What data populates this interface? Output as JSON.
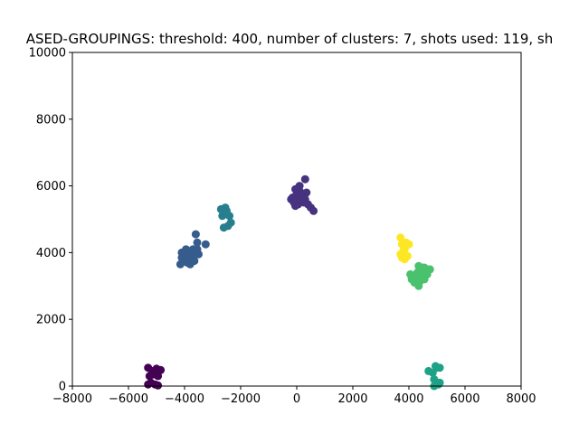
{
  "chart_data": {
    "type": "scatter",
    "title": "ASED-GROUPINGS: threshold: 400, number of clusters: 7, shots used: 119, sh",
    "xlabel": "",
    "ylabel": "",
    "xlim": [
      -8000,
      8000
    ],
    "ylim": [
      0,
      10000
    ],
    "xticks": [
      -8000,
      -6000,
      -4000,
      -2000,
      0,
      2000,
      4000,
      6000,
      8000
    ],
    "xtick_labels": [
      "−8000",
      "−6000",
      "−4000",
      "−2000",
      "0",
      "2000",
      "4000",
      "6000",
      "8000"
    ],
    "yticks": [
      0,
      2000,
      4000,
      6000,
      8000,
      10000
    ],
    "ytick_labels": [
      "0",
      "2000",
      "4000",
      "6000",
      "8000",
      "10000"
    ],
    "grid": false,
    "colormap": "viridis",
    "series": [
      {
        "color": "#440154",
        "points": [
          [
            -5300,
            550
          ],
          [
            -5150,
            450
          ],
          [
            -5000,
            520
          ],
          [
            -4850,
            480
          ],
          [
            -5250,
            300
          ],
          [
            -5100,
            350
          ],
          [
            -4950,
            300
          ],
          [
            -5200,
            100
          ],
          [
            -5050,
            50
          ],
          [
            -5300,
            50
          ],
          [
            -4950,
            20
          ]
        ]
      },
      {
        "color": "#46327e",
        "points": [
          [
            -150,
            5650
          ],
          [
            0,
            5750
          ],
          [
            100,
            5700
          ],
          [
            300,
            5600
          ],
          [
            350,
            5800
          ],
          [
            300,
            6200
          ],
          [
            100,
            6000
          ],
          [
            -50,
            5900
          ],
          [
            -100,
            5500
          ],
          [
            50,
            5450
          ],
          [
            150,
            5550
          ],
          [
            250,
            5500
          ],
          [
            400,
            5450
          ],
          [
            500,
            5350
          ],
          [
            600,
            5250
          ],
          [
            0,
            5600
          ],
          [
            200,
            5650
          ],
          [
            -200,
            5600
          ],
          [
            100,
            5850
          ],
          [
            -50,
            5400
          ]
        ]
      },
      {
        "color": "#365c8d",
        "points": [
          [
            -4150,
            3650
          ],
          [
            -4050,
            3800
          ],
          [
            -3900,
            3700
          ],
          [
            -3700,
            3750
          ],
          [
            -3600,
            3950
          ],
          [
            -3500,
            3950
          ],
          [
            -3250,
            4250
          ],
          [
            -3550,
            4300
          ],
          [
            -3600,
            4550
          ],
          [
            -3700,
            4100
          ],
          [
            -3800,
            4000
          ],
          [
            -3950,
            4100
          ],
          [
            -4100,
            4000
          ],
          [
            -4000,
            3900
          ],
          [
            -3850,
            3850
          ],
          [
            -3750,
            3850
          ],
          [
            -3650,
            3750
          ],
          [
            -3800,
            3650
          ],
          [
            -3550,
            4100
          ],
          [
            -3900,
            3950
          ],
          [
            -4100,
            3850
          ]
        ]
      },
      {
        "color": "#277f8e",
        "points": [
          [
            -2700,
            5300
          ],
          [
            -2550,
            5350
          ],
          [
            -2600,
            5150
          ],
          [
            -2400,
            5100
          ],
          [
            -2350,
            4900
          ],
          [
            -2450,
            4800
          ],
          [
            -2600,
            4750
          ],
          [
            -2500,
            5250
          ],
          [
            -2650,
            5100
          ]
        ]
      },
      {
        "color": "#1fa187",
        "points": [
          [
            4700,
            450
          ],
          [
            4850,
            400
          ],
          [
            4950,
            600
          ],
          [
            5000,
            550
          ],
          [
            5100,
            550
          ],
          [
            4900,
            200
          ],
          [
            5100,
            100
          ],
          [
            4900,
            0
          ],
          [
            5050,
            50
          ]
        ]
      },
      {
        "color": "#4ac16d",
        "points": [
          [
            4050,
            3350
          ],
          [
            4150,
            3250
          ],
          [
            4250,
            3150
          ],
          [
            4350,
            3000
          ],
          [
            4400,
            3150
          ],
          [
            4300,
            3400
          ],
          [
            4350,
            3600
          ],
          [
            4500,
            3550
          ],
          [
            4600,
            3450
          ],
          [
            4750,
            3500
          ],
          [
            4650,
            3350
          ],
          [
            4550,
            3200
          ],
          [
            4450,
            3300
          ],
          [
            4200,
            3100
          ],
          [
            4100,
            3200
          ],
          [
            4400,
            3500
          ],
          [
            4500,
            3400
          ],
          [
            4650,
            3500
          ],
          [
            4300,
            3250
          ],
          [
            4450,
            3450
          ],
          [
            4550,
            3550
          ]
        ]
      },
      {
        "color": "#fde725",
        "points": [
          [
            3700,
            4450
          ],
          [
            3750,
            4250
          ],
          [
            3900,
            4300
          ],
          [
            4000,
            4250
          ],
          [
            3800,
            4050
          ],
          [
            3700,
            3950
          ],
          [
            3750,
            3850
          ],
          [
            3850,
            3800
          ],
          [
            3950,
            3900
          ],
          [
            3850,
            4100
          ]
        ]
      }
    ]
  }
}
